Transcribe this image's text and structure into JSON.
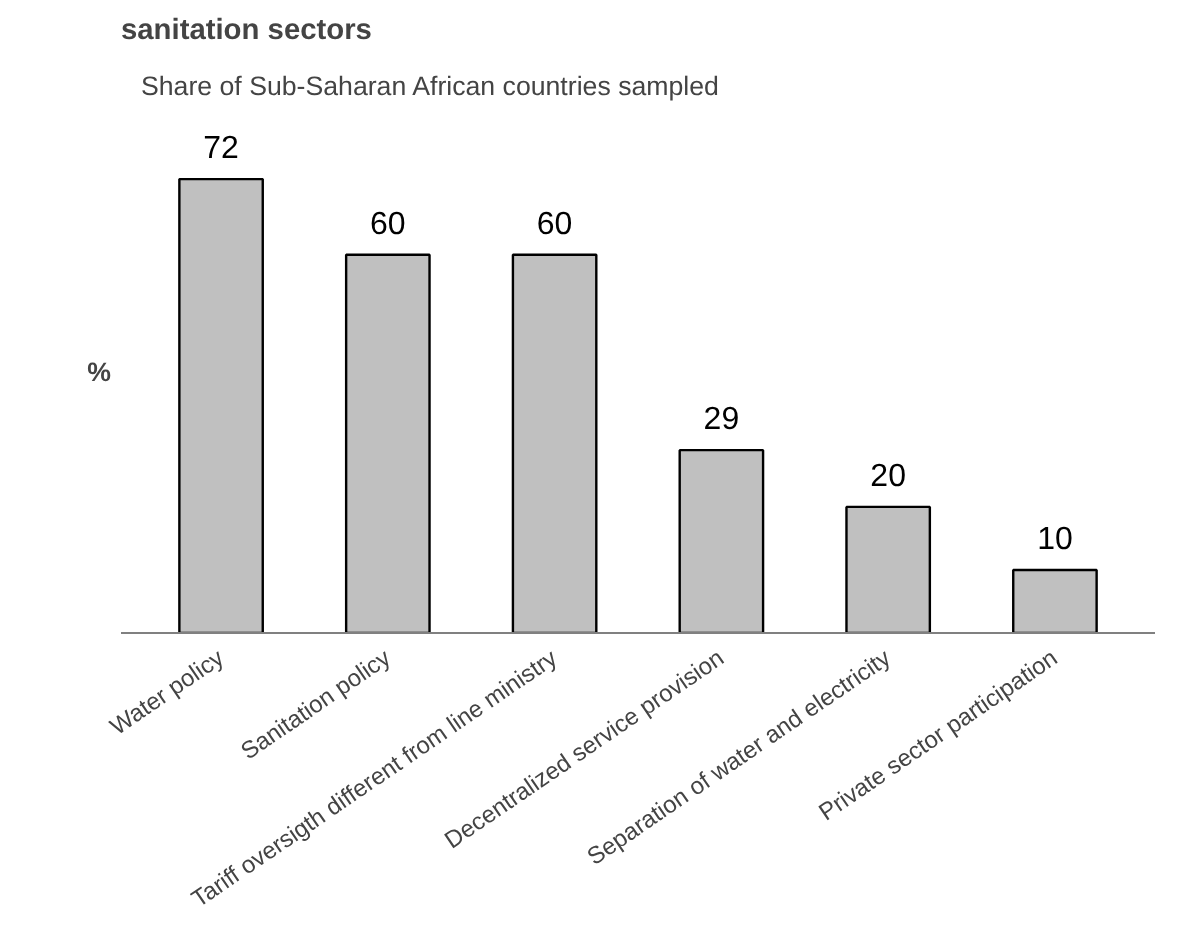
{
  "chart_data": {
    "type": "bar",
    "title": "sanitation sectors",
    "subtitle": "Share of Sub-Saharan African countries sampled",
    "ylabel": "%",
    "categories": [
      "Water policy",
      "Sanitation policy",
      "Tariff oversigth different from line ministry",
      "Decentralized service provision",
      "Separation of water and electricity",
      "Private sector participation"
    ],
    "values": [
      72,
      60,
      60,
      29,
      20,
      10
    ],
    "color": "#c0c0c0",
    "data_labels": true,
    "grid": false
  }
}
